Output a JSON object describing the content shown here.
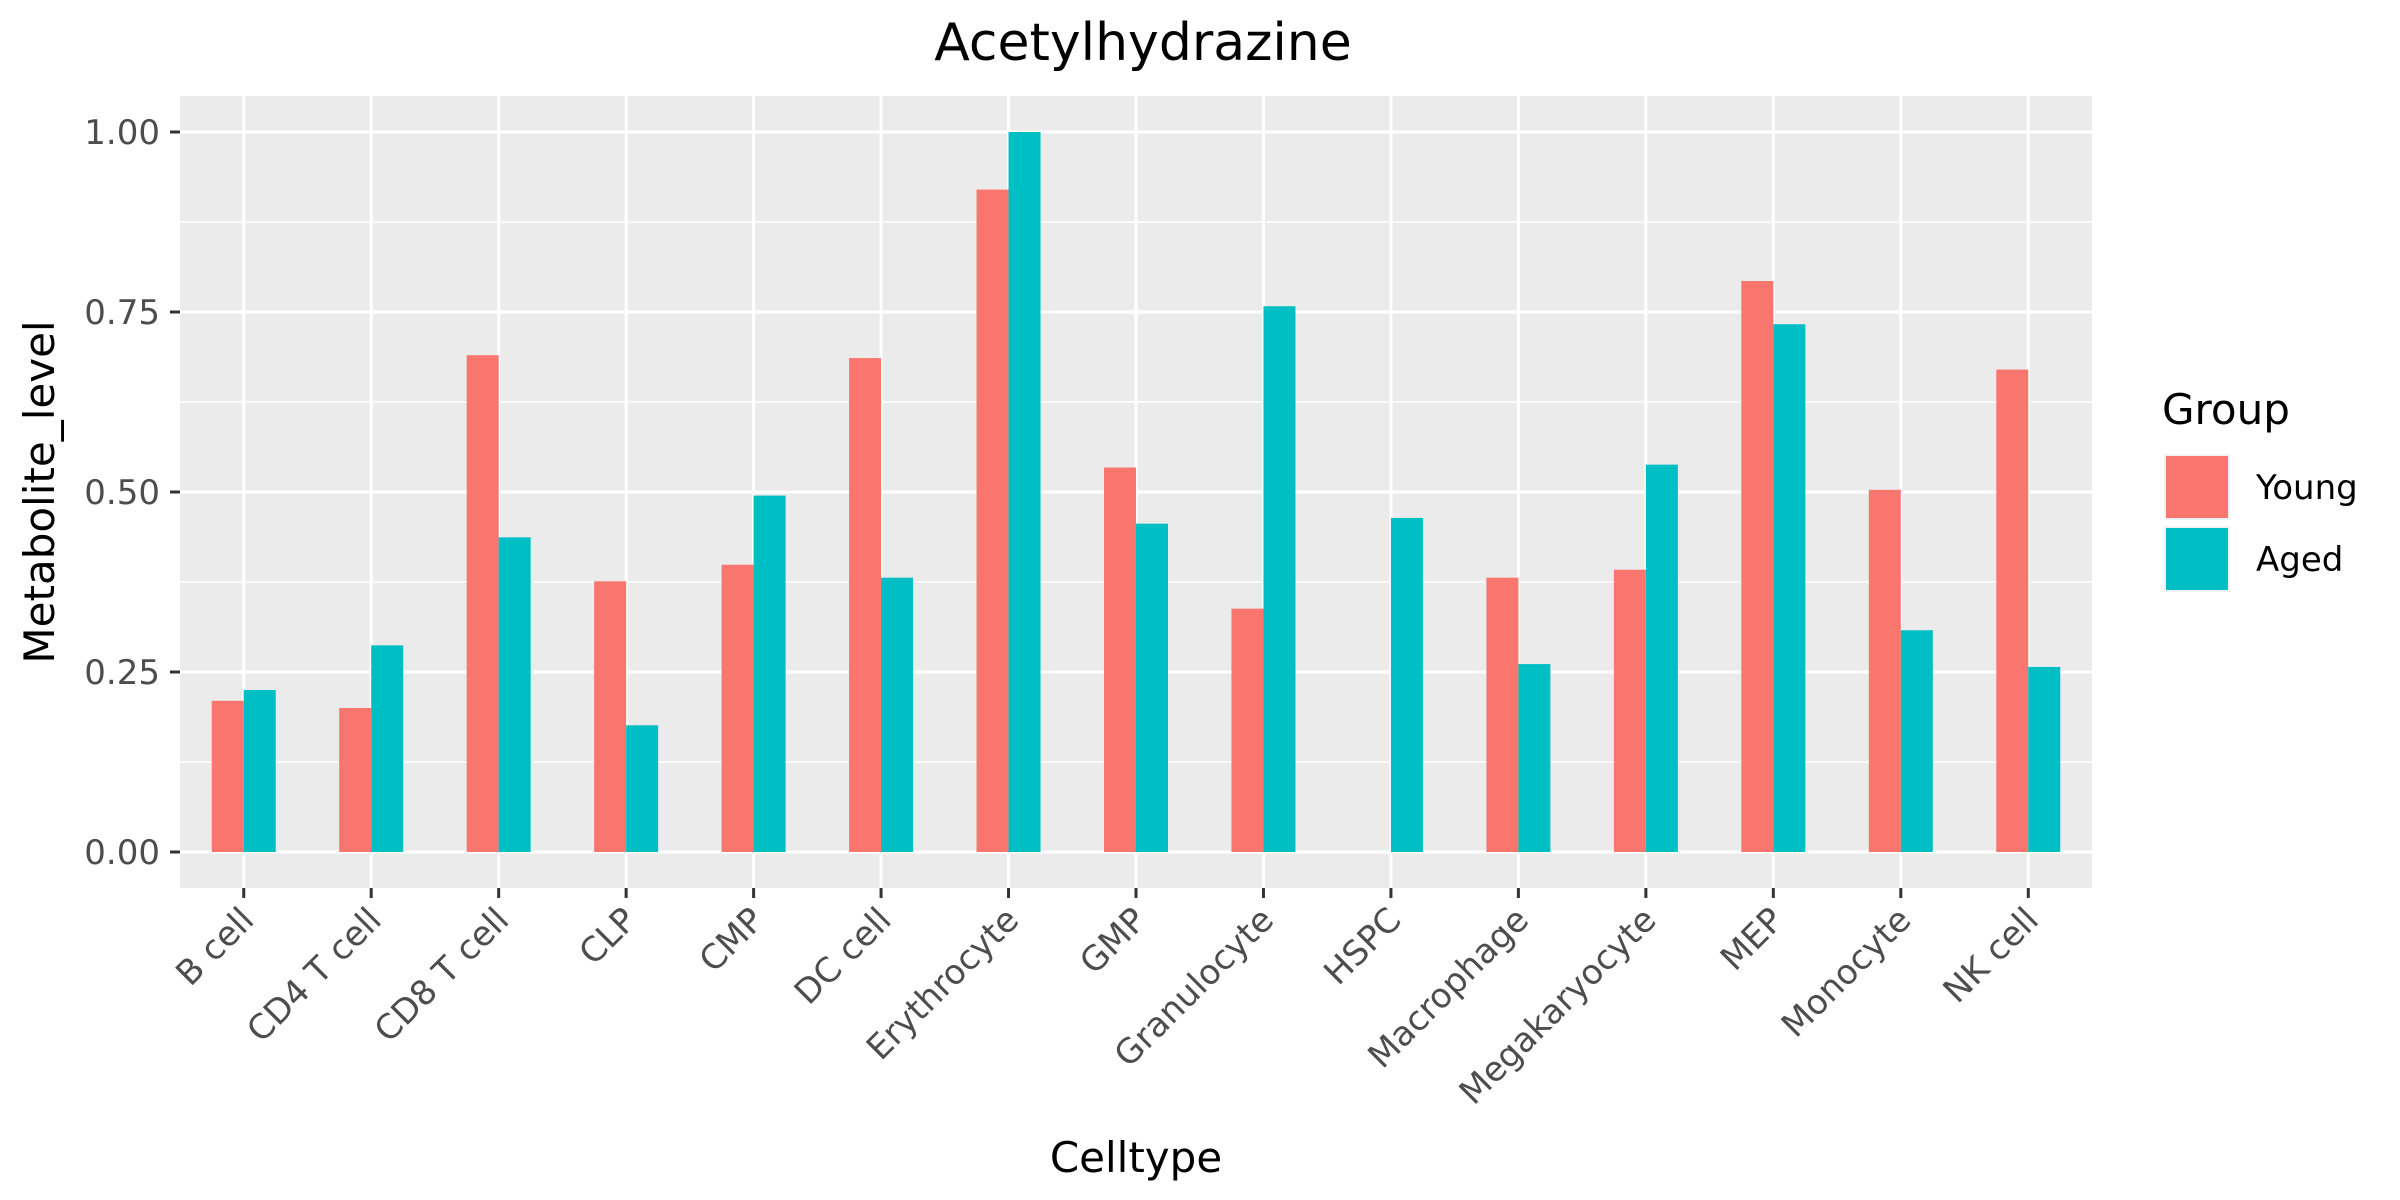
{
  "chart_data": {
    "type": "bar",
    "title": "Acetylhydrazine",
    "xlabel": "Celltype",
    "ylabel": "Metabolite_level",
    "ylim": [
      -0.05,
      1.05
    ],
    "yticks": [
      0.0,
      0.25,
      0.5,
      0.75,
      1.0
    ],
    "ytick_labels": [
      "0.00",
      "0.25",
      "0.50",
      "0.75",
      "1.00"
    ],
    "grid": true,
    "legend_title": "Group",
    "legend_position": "right",
    "categories": [
      "B cell",
      "CD4 T cell",
      "CD8 T cell",
      "CLP",
      "CMP",
      "DC cell",
      "Erythrocyte",
      "GMP",
      "Granulocyte",
      "HSPC",
      "Macrophage",
      "Megakaryocyte",
      "MEP",
      "Monocyte",
      "NK cell"
    ],
    "series": [
      {
        "name": "Young",
        "color": "#F8766D",
        "values": [
          0.21,
          0.2,
          0.69,
          0.376,
          0.399,
          0.686,
          0.92,
          0.534,
          0.338,
          null,
          0.381,
          0.392,
          0.793,
          0.503,
          0.67
        ]
      },
      {
        "name": "Aged",
        "color": "#00BFC4",
        "values": [
          0.225,
          0.287,
          0.437,
          0.176,
          0.495,
          0.381,
          1.0,
          0.456,
          0.758,
          0.464,
          0.261,
          0.538,
          0.733,
          0.308,
          0.257
        ]
      }
    ]
  }
}
